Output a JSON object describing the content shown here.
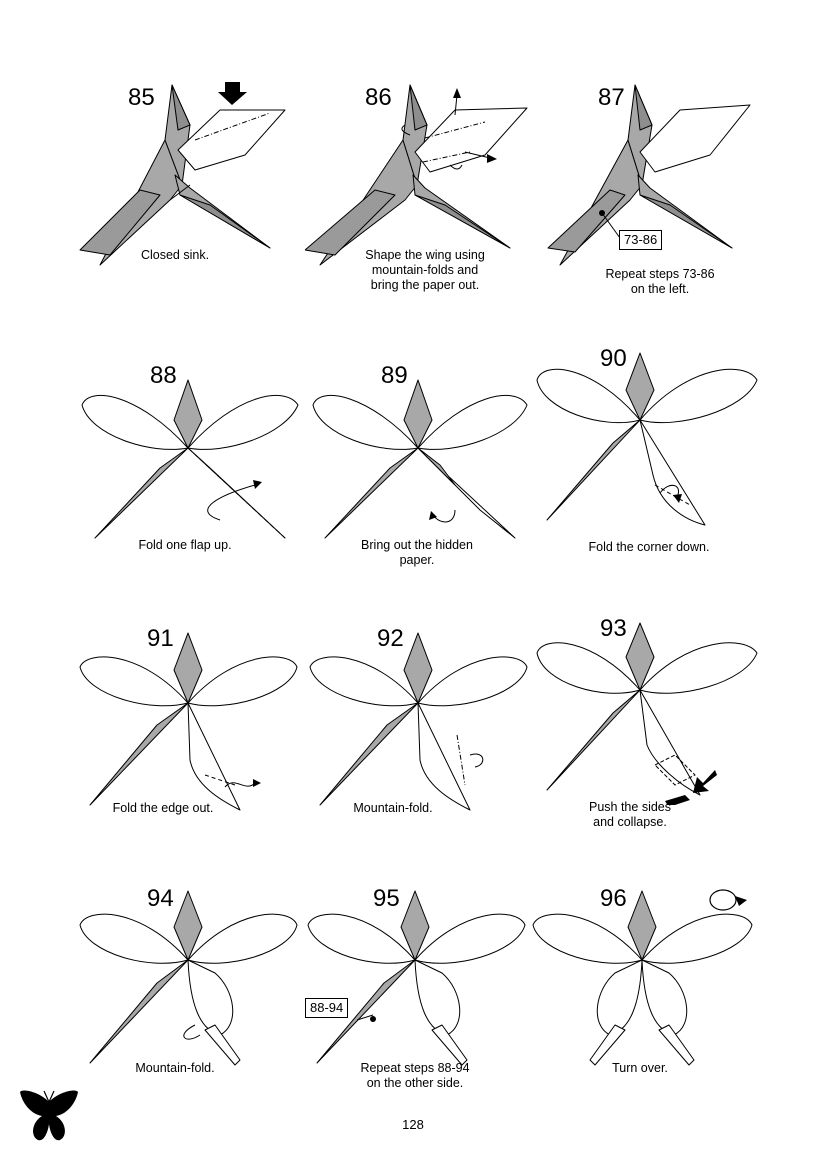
{
  "page": {
    "number": "128"
  },
  "colors": {
    "paper_gray": "#a8a8a8",
    "paper_dark": "#8e8e8e",
    "paper_white": "#ffffff",
    "line": "#000000"
  },
  "steps": [
    {
      "num": "85",
      "caption": "Closed sink."
    },
    {
      "num": "86",
      "caption": "Shape the wing using\nmountain-folds and\nbring the paper out."
    },
    {
      "num": "87",
      "caption": "Repeat steps 73-86\non the left.",
      "ref": "73-86"
    },
    {
      "num": "88",
      "caption": "Fold one flap up."
    },
    {
      "num": "89",
      "caption": "Bring out the hidden\npaper."
    },
    {
      "num": "90",
      "caption": "Fold the corner down."
    },
    {
      "num": "91",
      "caption": "Fold the edge out."
    },
    {
      "num": "92",
      "caption": "Mountain-fold."
    },
    {
      "num": "93",
      "caption": "Push the sides\nand collapse."
    },
    {
      "num": "94",
      "caption": "Mountain-fold."
    },
    {
      "num": "95",
      "caption": "Repeat steps 88-94\non the other side.",
      "ref": "88-94"
    },
    {
      "num": "96",
      "caption": "Turn over."
    }
  ],
  "icons": {
    "logo": "butterfly-silhouette-icon",
    "turn_over": "turn-over-icon"
  }
}
